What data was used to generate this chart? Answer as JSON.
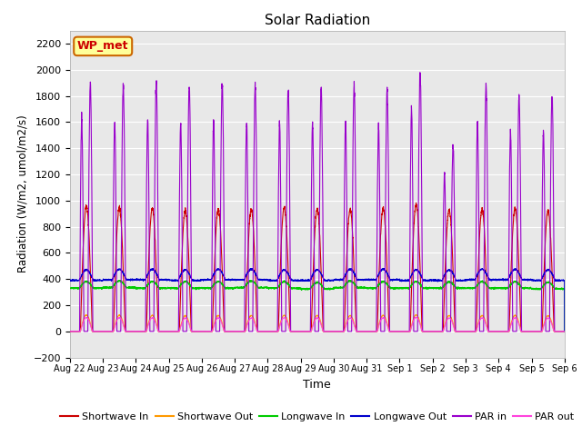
{
  "title": "Solar Radiation",
  "xlabel": "Time",
  "ylabel": "Radiation (W/m2, umol/m2/s)",
  "ylim": [
    -200,
    2300
  ],
  "yticks": [
    -200,
    0,
    200,
    400,
    600,
    800,
    1000,
    1200,
    1400,
    1600,
    1800,
    2000,
    2200
  ],
  "date_labels": [
    "Aug 22",
    "Aug 23",
    "Aug 24",
    "Aug 25",
    "Aug 26",
    "Aug 27",
    "Aug 28",
    "Aug 29",
    "Aug 30",
    "Aug 31",
    "Sep 1",
    "Sep 2",
    "Sep 3",
    "Sep 4",
    "Sep 5",
    "Sep 6"
  ],
  "series": {
    "Shortwave In": {
      "color": "#cc0000"
    },
    "Shortwave Out": {
      "color": "#ff9900"
    },
    "Longwave In": {
      "color": "#00cc00"
    },
    "Longwave Out": {
      "color": "#0000cc"
    },
    "PAR in": {
      "color": "#9900cc"
    },
    "PAR out": {
      "color": "#ff44dd"
    }
  },
  "bg_color": "#e8e8e8",
  "grid_color": "#ffffff",
  "n_days": 15,
  "points_per_day": 288,
  "sw_peaks": [
    960,
    940,
    940,
    920,
    935,
    930,
    945,
    935,
    930,
    940,
    970,
    930,
    930,
    940,
    920
  ],
  "par_peaks": [
    1900,
    1880,
    1900,
    1870,
    1890,
    1880,
    1860,
    1870,
    1880,
    1850,
    2000,
    1420,
    1890,
    1800,
    1800
  ],
  "lw_in_base": [
    330,
    335,
    330,
    330,
    330,
    335,
    330,
    325,
    335,
    330,
    330,
    330,
    330,
    330,
    325
  ],
  "lw_out_base": [
    390,
    395,
    395,
    390,
    395,
    395,
    390,
    390,
    395,
    395,
    390,
    390,
    395,
    395,
    390
  ]
}
